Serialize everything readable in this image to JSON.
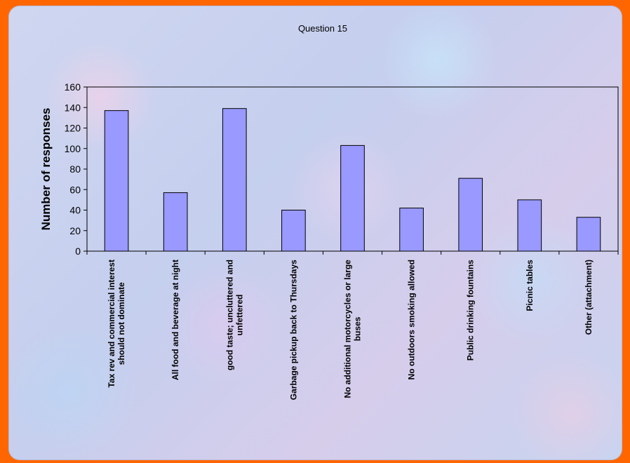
{
  "chart_data": {
    "type": "bar",
    "title": "Question 15",
    "xlabel": "",
    "ylabel": "Number of responses",
    "ylim": [
      0,
      160
    ],
    "yticks": [
      0,
      20,
      40,
      60,
      80,
      100,
      120,
      140,
      160
    ],
    "grid": false,
    "legend": "none",
    "bar_color": "#9999ff",
    "categories": [
      [
        "Tax rev and commercial interest",
        "should not dominate"
      ],
      [
        "All food and beverage at night"
      ],
      [
        "good taste; uncluttered and",
        "unfettered"
      ],
      [
        "Garbage pickup back to Thursdays"
      ],
      [
        "No additional motorcycles or large",
        "buses"
      ],
      [
        "No outdoors smoking allowed"
      ],
      [
        "Public drinking fountains"
      ],
      [
        "Picnic tables"
      ],
      [
        "Other (attachment)"
      ]
    ],
    "values": [
      137,
      57,
      139,
      40,
      103,
      42,
      71,
      50,
      33
    ]
  },
  "colors": {
    "page_border": "#ff6600",
    "bar": "#9999ff",
    "bar_stroke": "#000000"
  }
}
